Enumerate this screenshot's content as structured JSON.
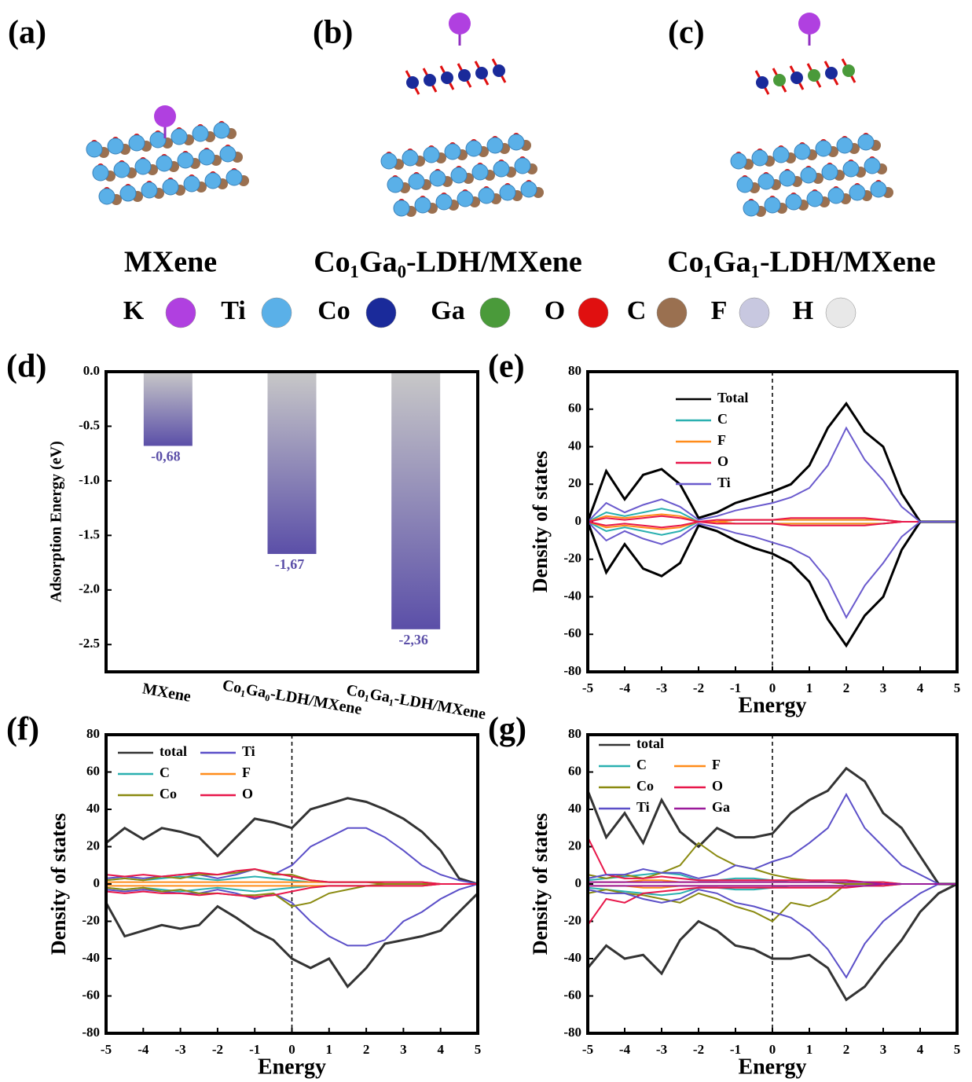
{
  "structures": {
    "panels": [
      {
        "label": "(a)",
        "name": "MXene"
      },
      {
        "label": "(b)",
        "name": "Co₁Ga₀-LDH/MXene"
      },
      {
        "label": "(c)",
        "name": "Co₁Ga₁-LDH/MXene"
      }
    ],
    "atoms": [
      {
        "symbol": "K",
        "color": "#b040e0"
      },
      {
        "symbol": "Ti",
        "color": "#5ab0e8"
      },
      {
        "symbol": "Co",
        "color": "#1a2a9a"
      },
      {
        "symbol": "Ga",
        "color": "#4a9a3a"
      },
      {
        "symbol": "O",
        "color": "#e01010"
      },
      {
        "symbol": "C",
        "color": "#9a7050"
      },
      {
        "symbol": "F",
        "color": "#c8c8e0"
      },
      {
        "symbol": "H",
        "color": "#e8e8e8"
      }
    ]
  },
  "chart_data": [
    {
      "type": "bar",
      "panel": "(d)",
      "ylabel": "Adsorption Energy (eV)",
      "categories": [
        "MXene",
        "Co₁Ga₀-LDH/MXene",
        "Co₁Ga₁-LDH/MXene"
      ],
      "values": [
        -0.68,
        -1.67,
        -2.36
      ],
      "value_labels": [
        "-0,68",
        "-1,67",
        "-2,36"
      ],
      "color": "#5b4fa8",
      "ylim": [
        -2.75,
        0
      ],
      "yticks": [
        {
          "value": 0,
          "label": "0.0"
        },
        -0.5,
        {
          "value": -1,
          "label": "-1.0"
        },
        -1.5,
        {
          "value": -2,
          "label": "-2.0"
        },
        -2.5
      ]
    },
    {
      "type": "line",
      "panel": "(e)",
      "xlabel": "Energy",
      "ylabel": "Density of states",
      "x": [
        -5,
        -4.5,
        -4,
        -3.5,
        -3,
        -2.5,
        -2,
        -1.5,
        -1,
        -0.5,
        0,
        0.5,
        1,
        1.5,
        2,
        2.5,
        3,
        3.5,
        4,
        4.5,
        5
      ],
      "xlim": [
        -5,
        5
      ],
      "xticks": [
        -5,
        -4,
        -3,
        -2,
        -1,
        0,
        1,
        2,
        3,
        4,
        5
      ],
      "ylim": [
        -80,
        80
      ],
      "yticks": [
        -80,
        -60,
        -40,
        -20,
        0,
        20,
        40,
        60,
        80
      ],
      "series": [
        {
          "name": "Total",
          "color": "#000000",
          "values": [
            0,
            27,
            12,
            25,
            28,
            20,
            2,
            5,
            10,
            13,
            16,
            20,
            30,
            50,
            63,
            48,
            40,
            15,
            0,
            0,
            0
          ],
          "values_down": [
            0,
            -27,
            -12,
            -25,
            -29,
            -22,
            -2,
            -5,
            -10,
            -14,
            -17,
            -22,
            -32,
            -52,
            -66,
            -50,
            -40,
            -15,
            0,
            0,
            0
          ]
        },
        {
          "name": "C",
          "color": "#2ab0b0",
          "values": [
            0,
            5,
            3,
            5,
            7,
            5,
            0,
            0,
            1,
            1,
            1,
            1,
            1,
            1,
            1,
            1,
            1,
            0,
            0,
            0,
            0
          ],
          "values_down": [
            0,
            -5,
            -3,
            -5,
            -7,
            -5,
            0,
            0,
            -1,
            -1,
            -1,
            -1,
            -1,
            -1,
            -1,
            -1,
            -1,
            0,
            0,
            0,
            0
          ]
        },
        {
          "name": "F",
          "color": "#ff8c1a",
          "values": [
            0,
            3,
            2,
            3,
            4,
            3,
            0,
            0,
            1,
            1,
            1,
            1,
            1,
            1,
            1,
            1,
            1,
            0,
            0,
            0,
            0
          ],
          "values_down": [
            0,
            -3,
            -2,
            -3,
            -4,
            -3,
            0,
            0,
            -1,
            -1,
            -1,
            -1,
            -1,
            -1,
            -1,
            -1,
            -1,
            0,
            0,
            0,
            0
          ]
        },
        {
          "name": "O",
          "color": "#e8174a",
          "values": [
            0,
            2,
            1,
            2,
            3,
            2,
            0,
            1,
            1,
            1,
            1,
            2,
            2,
            2,
            2,
            2,
            1,
            0,
            0,
            0,
            0
          ],
          "values_down": [
            0,
            -2,
            -1,
            -2,
            -3,
            -2,
            0,
            -1,
            -1,
            -1,
            -1,
            -2,
            -2,
            -2,
            -2,
            -2,
            -1,
            0,
            0,
            0,
            0
          ]
        },
        {
          "name": "Ti",
          "color": "#6a5acd",
          "values": [
            0,
            10,
            5,
            9,
            12,
            8,
            1,
            3,
            6,
            8,
            10,
            13,
            18,
            30,
            50,
            33,
            22,
            8,
            0,
            0,
            0
          ],
          "values_down": [
            0,
            -10,
            -5,
            -9,
            -12,
            -8,
            -1,
            -3,
            -6,
            -8,
            -11,
            -14,
            -19,
            -31,
            -51,
            -34,
            -22,
            -8,
            0,
            0,
            0
          ]
        }
      ]
    },
    {
      "type": "line",
      "panel": "(f)",
      "xlabel": "Energy",
      "ylabel": "Density of states",
      "x": [
        -5,
        -4.5,
        -4,
        -3.5,
        -3,
        -2.5,
        -2,
        -1.5,
        -1,
        -0.5,
        0,
        0.5,
        1,
        1.5,
        2,
        2.5,
        3,
        3.5,
        4,
        4.5,
        5
      ],
      "xlim": [
        -5,
        5
      ],
      "xticks": [
        -5,
        -4,
        -3,
        -2,
        -1,
        0,
        1,
        2,
        3,
        4,
        5
      ],
      "ylim": [
        -80,
        80
      ],
      "yticks": [
        -80,
        -60,
        -40,
        -20,
        0,
        20,
        40,
        60,
        80
      ],
      "series": [
        {
          "name": "total",
          "color": "#333333",
          "values": [
            22,
            30,
            24,
            30,
            28,
            25,
            15,
            25,
            35,
            33,
            30,
            40,
            43,
            46,
            44,
            40,
            35,
            28,
            18,
            3,
            0
          ],
          "values_down": [
            -10,
            -28,
            -25,
            -22,
            -24,
            -22,
            -12,
            -18,
            -25,
            -30,
            -40,
            -45,
            -40,
            -55,
            -45,
            -32,
            -30,
            -28,
            -25,
            -15,
            -5
          ]
        },
        {
          "name": "Ti",
          "color": "#5b4fc8",
          "values": [
            3,
            4,
            3,
            4,
            5,
            5,
            3,
            5,
            8,
            5,
            10,
            20,
            25,
            30,
            30,
            25,
            18,
            10,
            5,
            2,
            0
          ],
          "values_down": [
            -3,
            -4,
            -3,
            -4,
            -5,
            -5,
            -3,
            -5,
            -8,
            -5,
            -10,
            -20,
            -28,
            -33,
            -33,
            -30,
            -20,
            -15,
            -8,
            -3,
            0
          ]
        },
        {
          "name": "C",
          "color": "#2ab0b0",
          "values": [
            2,
            3,
            2,
            3,
            4,
            3,
            2,
            3,
            4,
            3,
            2,
            1,
            1,
            1,
            1,
            1,
            1,
            1,
            0,
            0,
            0
          ],
          "values_down": [
            -2,
            -3,
            -2,
            -3,
            -4,
            -3,
            -2,
            -3,
            -4,
            -3,
            -2,
            -1,
            -1,
            -1,
            -1,
            -1,
            -1,
            -1,
            0,
            0,
            0
          ]
        },
        {
          "name": "F",
          "color": "#ff8c1a",
          "values": [
            1,
            1,
            1,
            1,
            1,
            1,
            1,
            1,
            1,
            1,
            1,
            1,
            1,
            1,
            1,
            1,
            1,
            1,
            0,
            0,
            0
          ],
          "values_down": [
            -1,
            -1,
            -1,
            -1,
            -1,
            -1,
            -1,
            -1,
            -1,
            -1,
            -1,
            -1,
            -1,
            -1,
            -1,
            -1,
            -1,
            -1,
            0,
            0,
            0
          ]
        },
        {
          "name": "Co",
          "color": "#8a8a10",
          "values": [
            2,
            3,
            2,
            4,
            3,
            5,
            5,
            6,
            8,
            5,
            5,
            2,
            1,
            1,
            1,
            0,
            0,
            0,
            0,
            0,
            0
          ],
          "values_down": [
            -2,
            -3,
            -2,
            -4,
            -3,
            -5,
            -5,
            -6,
            -6,
            -5,
            -12,
            -10,
            -5,
            -3,
            -1,
            0,
            0,
            0,
            0,
            0,
            0
          ]
        },
        {
          "name": "O",
          "color": "#e8174a",
          "values": [
            5,
            4,
            5,
            4,
            5,
            6,
            5,
            7,
            8,
            6,
            4,
            2,
            1,
            1,
            1,
            1,
            1,
            1,
            0,
            0,
            0
          ],
          "values_down": [
            -4,
            -5,
            -4,
            -5,
            -5,
            -6,
            -5,
            -6,
            -7,
            -6,
            -4,
            -2,
            -1,
            -1,
            -1,
            -1,
            -1,
            -1,
            0,
            0,
            0
          ]
        }
      ]
    },
    {
      "type": "line",
      "panel": "(g)",
      "xlabel": "Energy",
      "ylabel": "Density of states",
      "x": [
        -5,
        -4.5,
        -4,
        -3.5,
        -3,
        -2.5,
        -2,
        -1.5,
        -1,
        -0.5,
        0,
        0.5,
        1,
        1.5,
        2,
        2.5,
        3,
        3.5,
        4,
        4.5,
        5
      ],
      "xlim": [
        -5,
        5
      ],
      "xticks": [
        -5,
        -4,
        -3,
        -2,
        -1,
        0,
        1,
        2,
        3,
        4,
        5
      ],
      "ylim": [
        -80,
        80
      ],
      "yticks": [
        -80,
        -60,
        -40,
        -20,
        0,
        20,
        40,
        60,
        80
      ],
      "series": [
        {
          "name": "total",
          "color": "#333333",
          "values": [
            50,
            25,
            38,
            22,
            45,
            28,
            20,
            30,
            25,
            25,
            27,
            38,
            45,
            50,
            62,
            55,
            38,
            30,
            15,
            0,
            0
          ],
          "values_down": [
            -45,
            -33,
            -40,
            -38,
            -48,
            -30,
            -20,
            -25,
            -33,
            -35,
            -40,
            -40,
            -38,
            -45,
            -62,
            -55,
            -42,
            -30,
            -15,
            -5,
            0
          ]
        },
        {
          "name": "C",
          "color": "#2ab0b0",
          "values": [
            2,
            3,
            4,
            5,
            6,
            5,
            2,
            2,
            3,
            3,
            2,
            1,
            1,
            1,
            1,
            1,
            1,
            0,
            0,
            0,
            0
          ],
          "values_down": [
            -2,
            -3,
            -4,
            -5,
            -6,
            -5,
            -2,
            -2,
            -3,
            -3,
            -2,
            -1,
            -1,
            -1,
            -1,
            -1,
            -1,
            0,
            0,
            0,
            0
          ]
        },
        {
          "name": "F",
          "color": "#ff8c1a",
          "values": [
            1,
            1,
            1,
            2,
            2,
            1,
            1,
            1,
            1,
            1,
            1,
            1,
            1,
            1,
            1,
            1,
            0,
            0,
            0,
            0,
            0
          ],
          "values_down": [
            -1,
            -1,
            -1,
            -2,
            -2,
            -1,
            -1,
            -1,
            -1,
            -1,
            -1,
            -1,
            -1,
            -1,
            -1,
            -1,
            0,
            0,
            0,
            0,
            0
          ]
        },
        {
          "name": "Co",
          "color": "#8a8a10",
          "values": [
            5,
            3,
            5,
            3,
            6,
            10,
            22,
            15,
            10,
            8,
            5,
            3,
            2,
            1,
            0,
            0,
            0,
            0,
            0,
            0,
            0
          ],
          "values_down": [
            -5,
            -3,
            -5,
            -6,
            -8,
            -10,
            -5,
            -8,
            -12,
            -15,
            -20,
            -10,
            -12,
            -8,
            0,
            0,
            0,
            0,
            0,
            0,
            0
          ]
        },
        {
          "name": "O",
          "color": "#e8174a",
          "values": [
            25,
            5,
            3,
            3,
            4,
            3,
            2,
            2,
            2,
            2,
            2,
            2,
            2,
            2,
            2,
            1,
            1,
            0,
            0,
            0,
            0
          ],
          "values_down": [
            -22,
            -8,
            -10,
            -5,
            -4,
            -3,
            -2,
            -2,
            -2,
            -2,
            -2,
            -2,
            -2,
            -2,
            -2,
            -1,
            -1,
            0,
            0,
            0,
            0
          ]
        },
        {
          "name": "Ti",
          "color": "#5b4fc8",
          "values": [
            3,
            5,
            5,
            8,
            6,
            6,
            3,
            5,
            10,
            8,
            12,
            15,
            22,
            30,
            48,
            30,
            20,
            10,
            5,
            0,
            0
          ],
          "values_down": [
            -3,
            -5,
            -5,
            -8,
            -10,
            -8,
            -3,
            -5,
            -10,
            -12,
            -15,
            -18,
            -25,
            -35,
            -50,
            -32,
            -20,
            -12,
            -5,
            0,
            0
          ]
        },
        {
          "name": "Ga",
          "color": "#9a1a9a",
          "values": [
            1,
            1,
            1,
            1,
            1,
            1,
            1,
            1,
            1,
            1,
            1,
            1,
            1,
            1,
            1,
            1,
            0,
            0,
            0,
            0,
            0
          ],
          "values_down": [
            -1,
            -1,
            -1,
            -1,
            -1,
            -1,
            -1,
            -1,
            -1,
            -1,
            -1,
            -1,
            -1,
            -1,
            -1,
            -1,
            0,
            0,
            0,
            0,
            0
          ]
        }
      ]
    }
  ]
}
